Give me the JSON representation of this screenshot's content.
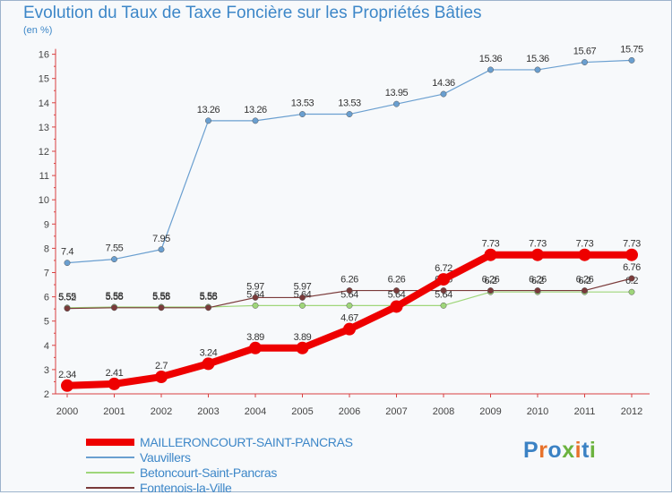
{
  "header": {
    "title": "Evolution du Taux de Taxe Foncière sur les Propriétés Bâties",
    "unit": "(en %)"
  },
  "brand": {
    "text": "Proxiti",
    "colors": [
      "#3b82c4",
      "#e8722a",
      "#3b82c4",
      "#6cb33f",
      "#e8722a",
      "#3b82c4",
      "#6cb33f"
    ]
  },
  "chart_data": {
    "type": "line",
    "title": "Evolution du Taux de Taxe Foncière sur les Propriétés Bâties",
    "ylabel": "(en %)",
    "xlabel": "",
    "categories": [
      "2000",
      "2001",
      "2002",
      "2003",
      "2004",
      "2005",
      "2006",
      "2007",
      "2008",
      "2009",
      "2010",
      "2011",
      "2012"
    ],
    "ylim": [
      2,
      16
    ],
    "yticks": [
      2,
      3,
      4,
      5,
      6,
      7,
      8,
      9,
      10,
      11,
      12,
      13,
      14,
      15,
      16
    ],
    "grid": false,
    "legend_position": "bottom-left",
    "series": [
      {
        "name": "Vauvillers",
        "color": "#6a9fd0",
        "values": [
          7.4,
          7.55,
          7.95,
          13.26,
          13.26,
          13.53,
          13.53,
          13.95,
          14.36,
          15.36,
          15.36,
          15.67,
          15.75
        ],
        "labels": [
          "7.4",
          "7.55",
          "7.95",
          "13.26",
          "13.26",
          "13.53",
          "13.53",
          "13.95",
          "14.36",
          "15.36",
          "15.36",
          "15.67",
          "15.75"
        ]
      },
      {
        "name": "Betoncourt-Saint-Pancras",
        "color": "#9fd67a",
        "values": [
          5.55,
          5.58,
          5.58,
          5.58,
          5.64,
          5.64,
          5.64,
          5.64,
          5.64,
          6.2,
          6.2,
          6.2,
          6.2
        ],
        "labels": [
          "5.55",
          "5.58",
          "5.58",
          "5.58",
          "5.64",
          "5.64",
          "5.64",
          "5.64",
          "5.64",
          "6.2",
          "6.2",
          "6.2",
          "6.2"
        ]
      },
      {
        "name": "Fontenois-la-Ville",
        "color": "#7a3a3a",
        "values": [
          5.52,
          5.55,
          5.55,
          5.55,
          5.97,
          5.97,
          6.26,
          6.26,
          6.26,
          6.26,
          6.26,
          6.26,
          6.76
        ],
        "labels": [
          "5.52",
          "5.55",
          "5.55",
          "5.55",
          "5.97",
          "5.97",
          "6.26",
          "6.26",
          "6.26",
          "6.26",
          "6.26",
          "6.26",
          "6.76"
        ]
      },
      {
        "name": "MAILLERONCOURT-SAINT-PANCRAS",
        "color": "#ee0000",
        "values": [
          2.34,
          2.41,
          2.7,
          3.24,
          3.89,
          3.89,
          4.67,
          5.6,
          6.72,
          7.73,
          7.73,
          7.73,
          7.73
        ],
        "labels": [
          "2.34",
          "2.41",
          "2.7",
          "3.24",
          "3.89",
          "3.89",
          "4.67",
          "",
          "6.72",
          "7.73",
          "7.73",
          "7.73",
          "7.73"
        ]
      }
    ]
  },
  "legend": [
    {
      "name": "MAILLERONCOURT-SAINT-PANCRAS",
      "color": "#ee0000",
      "thick": true
    },
    {
      "name": "Vauvillers",
      "color": "#6a9fd0",
      "thick": false
    },
    {
      "name": "Betoncourt-Saint-Pancras",
      "color": "#9fd67a",
      "thick": false
    },
    {
      "name": "Fontenois-la-Ville",
      "color": "#7a3a3a",
      "thick": false
    }
  ]
}
